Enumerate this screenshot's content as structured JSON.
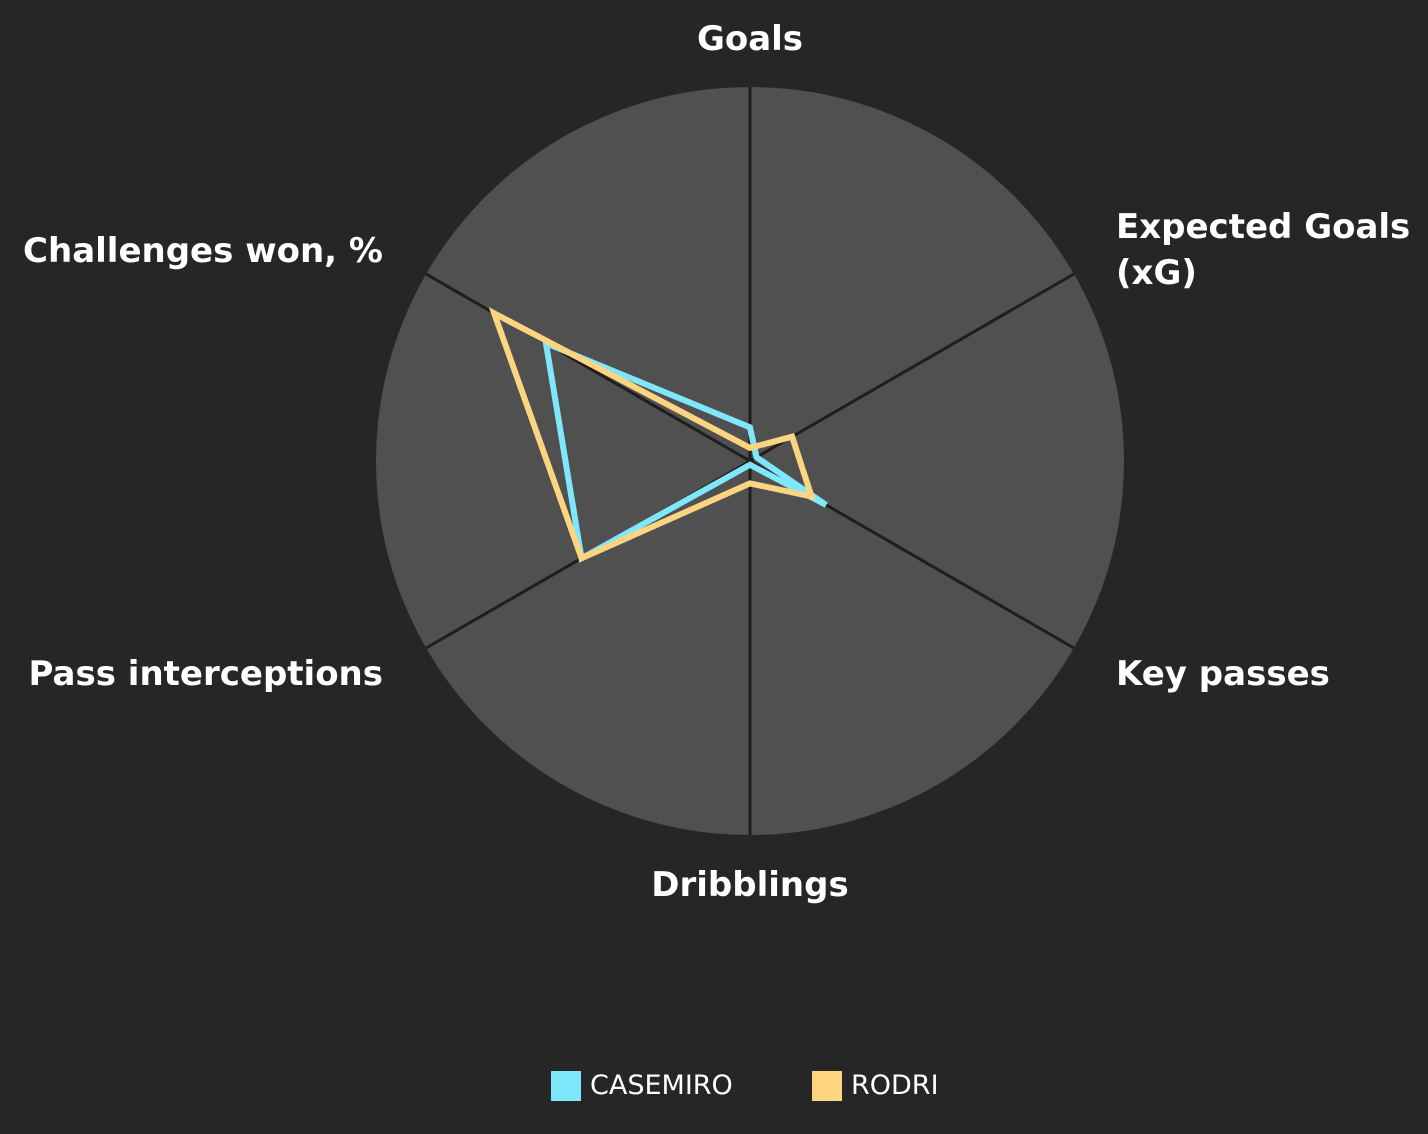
{
  "chart_data": {
    "type": "radar",
    "categories": [
      "Goals",
      "Expected Goals (xG)",
      "Key passes",
      "Dribblings",
      "Pass interceptions",
      "Challenges won, %"
    ],
    "rlim": [
      0,
      100
    ],
    "series": [
      {
        "name": "CASEMIRO",
        "color": "#7ee8fa",
        "values": [
          9,
          2,
          23.5,
          1,
          52,
          63
        ]
      },
      {
        "name": "RODRI",
        "color": "#fdd480",
        "values": [
          3.5,
          13,
          19,
          6,
          52,
          79
        ]
      }
    ]
  }
}
